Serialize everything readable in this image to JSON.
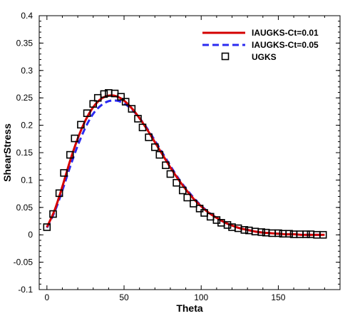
{
  "chart_data": {
    "type": "line",
    "title": "",
    "xlabel": "Theta",
    "ylabel": "ShearStress",
    "xlim": [
      -5,
      190
    ],
    "ylim": [
      -0.1,
      0.4
    ],
    "xticks": [
      0,
      50,
      100,
      150
    ],
    "xtick_labels": [
      "0",
      "50",
      "100",
      "150"
    ],
    "yticks": [
      -0.1,
      -0.05,
      0,
      0.05,
      0.1,
      0.15,
      0.2,
      0.25,
      0.3,
      0.35,
      0.4
    ],
    "ytick_labels": [
      "-0.1",
      "-0.05",
      "0",
      "0.05",
      "0.1",
      "0.15",
      "0.2",
      "0.25",
      "0.3",
      "0.35",
      "0.4"
    ],
    "grid": false,
    "legend_position": "top-right",
    "series": [
      {
        "name": "IAUGKS-Ct=0.01",
        "style": "solid-line",
        "color": "#d40000",
        "x": [
          0,
          5,
          10,
          15,
          20,
          25,
          30,
          35,
          40,
          45,
          50,
          55,
          60,
          65,
          70,
          75,
          80,
          85,
          90,
          95,
          100,
          105,
          110,
          115,
          120,
          125,
          130,
          135,
          140,
          145,
          150,
          155,
          160,
          165,
          170,
          175,
          180
        ],
        "y": [
          0.014,
          0.045,
          0.088,
          0.135,
          0.176,
          0.209,
          0.233,
          0.248,
          0.254,
          0.253,
          0.245,
          0.231,
          0.213,
          0.192,
          0.169,
          0.146,
          0.123,
          0.102,
          0.083,
          0.066,
          0.052,
          0.04,
          0.031,
          0.023,
          0.017,
          0.012,
          0.009,
          0.006,
          0.004,
          0.003,
          0.002,
          0.001,
          0.001,
          0.0,
          0.0,
          0.0,
          0.0
        ]
      },
      {
        "name": "IAUGKS-Ct=0.05",
        "style": "dashed-line",
        "color": "#2b2bf0",
        "x": [
          0,
          5,
          10,
          15,
          20,
          25,
          30,
          35,
          40,
          45,
          50,
          55,
          60,
          65,
          70,
          75,
          80,
          85,
          90,
          95,
          100,
          105,
          110,
          115,
          120,
          125,
          130,
          135,
          140,
          145,
          150,
          155,
          160,
          165,
          170,
          175,
          180
        ],
        "y": [
          0.013,
          0.042,
          0.081,
          0.124,
          0.163,
          0.196,
          0.221,
          0.236,
          0.244,
          0.245,
          0.24,
          0.229,
          0.213,
          0.194,
          0.172,
          0.149,
          0.126,
          0.104,
          0.085,
          0.068,
          0.053,
          0.041,
          0.031,
          0.023,
          0.017,
          0.012,
          0.009,
          0.006,
          0.004,
          0.003,
          0.002,
          0.001,
          0.001,
          0.0,
          0.0,
          0.0,
          0.0
        ]
      },
      {
        "name": "UGKS",
        "style": "open-square",
        "color": "#000000",
        "x": [
          0,
          4,
          8,
          11,
          15,
          18,
          22,
          26,
          30,
          33,
          37,
          40,
          44,
          48,
          51,
          55,
          59,
          62,
          66,
          70,
          73,
          77,
          80,
          84,
          88,
          91,
          95,
          99,
          102,
          106,
          110,
          113,
          117,
          120,
          124,
          128,
          131,
          135,
          139,
          142,
          146,
          150,
          153,
          157,
          160,
          164,
          168,
          171,
          175,
          179
        ],
        "y": [
          0.014,
          0.038,
          0.076,
          0.113,
          0.146,
          0.176,
          0.201,
          0.222,
          0.239,
          0.25,
          0.257,
          0.259,
          0.258,
          0.252,
          0.243,
          0.23,
          0.212,
          0.196,
          0.178,
          0.16,
          0.146,
          0.127,
          0.111,
          0.095,
          0.081,
          0.068,
          0.057,
          0.048,
          0.04,
          0.033,
          0.027,
          0.022,
          0.018,
          0.014,
          0.012,
          0.009,
          0.008,
          0.006,
          0.005,
          0.004,
          0.003,
          0.003,
          0.002,
          0.002,
          0.001,
          0.001,
          0.001,
          0.001,
          0.0,
          0.0
        ]
      }
    ]
  }
}
